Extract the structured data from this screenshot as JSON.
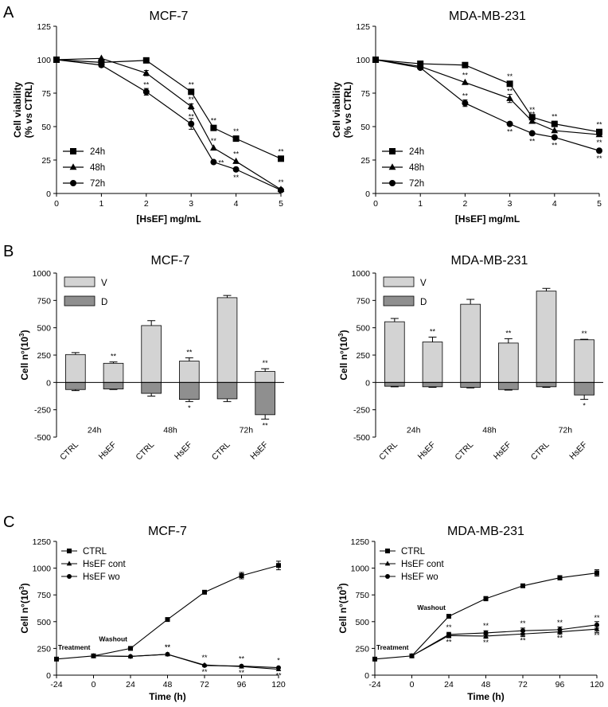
{
  "figure": {
    "panel_labels": [
      "A",
      "B",
      "C"
    ]
  },
  "chart_data": [
    {
      "type": "line",
      "title": "MCF-7",
      "xlabel": "[HsEF] mg/mL",
      "ylabel_lines": [
        "Cell viability",
        "(% vs CTRL)"
      ],
      "xlim": [
        0,
        5
      ],
      "ylim": [
        0,
        125
      ],
      "xticks": [
        0,
        1,
        2,
        3,
        4,
        5
      ],
      "yticks": [
        0,
        25,
        50,
        75,
        100,
        125
      ],
      "x": [
        0,
        1,
        2,
        3,
        3.5,
        4,
        5
      ],
      "series": [
        {
          "name": "24h",
          "marker": "square",
          "values": [
            100,
            98,
            99.5,
            76,
            49,
            41,
            26
          ],
          "errors": [
            0,
            0,
            0,
            0,
            0,
            0,
            0
          ],
          "sig": [
            [
              "",
              ""
            ],
            [
              "",
              ""
            ],
            [
              "",
              ""
            ],
            [
              "above",
              "**"
            ],
            [
              "above",
              "**"
            ],
            [
              "above",
              "**"
            ],
            [
              "above",
              "**"
            ]
          ]
        },
        {
          "name": "48h",
          "marker": "triangle",
          "values": [
            100,
            101,
            90,
            65,
            34,
            24,
            3
          ],
          "errors": [
            0,
            0,
            2,
            2,
            0,
            0,
            0
          ],
          "sig": [
            [
              "",
              ""
            ],
            [
              "",
              ""
            ],
            [
              "",
              ""
            ],
            [
              "above",
              "**"
            ],
            [
              "above",
              "**"
            ],
            [
              "above",
              "**"
            ],
            [
              "above",
              "**"
            ]
          ]
        },
        {
          "name": "72h",
          "marker": "circle",
          "values": [
            100,
            96,
            76,
            52,
            23.5,
            18,
            2.5
          ],
          "errors": [
            0,
            1.5,
            2.5,
            4,
            0,
            0,
            0
          ],
          "sig": [
            [
              "",
              ""
            ],
            [
              "",
              ""
            ],
            [
              "above",
              "**"
            ],
            [
              "above",
              "**"
            ],
            [
              "right",
              "**"
            ],
            [
              "below",
              "**"
            ],
            [
              "",
              ""
            ]
          ]
        }
      ]
    },
    {
      "type": "line",
      "title": "MDA-MB-231",
      "xlabel": "[HsEF] mg/mL",
      "ylabel_lines": [
        "Cell viability",
        "(% vs CTRL)"
      ],
      "xlim": [
        0,
        5
      ],
      "ylim": [
        0,
        125
      ],
      "xticks": [
        0,
        1,
        2,
        3,
        4,
        5
      ],
      "yticks": [
        0,
        25,
        50,
        75,
        100,
        125
      ],
      "x": [
        0,
        1,
        2,
        3,
        3.5,
        4,
        5
      ],
      "series": [
        {
          "name": "24h",
          "marker": "square",
          "values": [
            100,
            97,
            96,
            82,
            57,
            52,
            46
          ],
          "errors": [
            0,
            0,
            0,
            0,
            0,
            0,
            0
          ],
          "sig": [
            [
              "",
              ""
            ],
            [
              "",
              ""
            ],
            [
              "",
              ""
            ],
            [
              "above",
              "**"
            ],
            [
              "above",
              "**"
            ],
            [
              "above",
              "**"
            ],
            [
              "above",
              "**"
            ]
          ]
        },
        {
          "name": "48h",
          "marker": "triangle",
          "values": [
            100,
            95,
            83,
            71,
            54,
            47,
            44
          ],
          "errors": [
            0,
            0,
            0,
            3,
            0,
            0,
            0
          ],
          "sig": [
            [
              "",
              ""
            ],
            [
              "",
              ""
            ],
            [
              "above",
              "**"
            ],
            [
              "above",
              "**"
            ],
            [
              "above",
              "**"
            ],
            [
              "above",
              "**"
            ],
            [
              "below",
              "**"
            ]
          ]
        },
        {
          "name": "72h",
          "marker": "circle",
          "values": [
            100,
            94,
            67.5,
            52,
            45,
            42,
            32
          ],
          "errors": [
            0,
            0,
            2.5,
            0,
            0,
            0,
            0
          ],
          "sig": [
            [
              "",
              ""
            ],
            [
              "",
              ""
            ],
            [
              "above",
              "**"
            ],
            [
              "below",
              "**"
            ],
            [
              "below",
              "**"
            ],
            [
              "below",
              "**"
            ],
            [
              "below",
              "**"
            ]
          ]
        }
      ]
    },
    {
      "type": "bar",
      "title": "MCF-7",
      "ylabel": "Cell n°(10",
      "ylabel_sup": "3",
      "ylim": [
        -500,
        1000
      ],
      "yticks": [
        -500,
        -250,
        0,
        250,
        500,
        750,
        1000
      ],
      "groups": [
        "24h",
        "48h",
        "72h"
      ],
      "bar_labels": [
        "CTRL",
        "HsEF",
        "CTRL",
        "HsEF",
        "CTRL",
        "HsEF"
      ],
      "legend": [
        "V",
        "D"
      ],
      "series": [
        {
          "name": "V",
          "color": "#d3d3d3",
          "values": [
            255,
            175,
            520,
            195,
            775,
            100
          ],
          "errors": [
            18,
            12,
            45,
            30,
            20,
            25
          ],
          "sig": [
            "",
            "**",
            "",
            "**",
            "",
            "**"
          ]
        },
        {
          "name": "D",
          "color": "#8f8f8f",
          "values": [
            -65,
            -60,
            -100,
            -155,
            -150,
            -295
          ],
          "errors": [
            10,
            5,
            25,
            20,
            25,
            40
          ],
          "sig": [
            "",
            "",
            "",
            "*",
            "",
            "**"
          ]
        }
      ]
    },
    {
      "type": "bar",
      "title": "MDA-MB-231",
      "ylabel": "Cell n°(10",
      "ylabel_sup": "3",
      "ylim": [
        -500,
        1000
      ],
      "yticks": [
        -500,
        -250,
        0,
        250,
        500,
        750,
        1000
      ],
      "groups": [
        "24h",
        "48h",
        "72h"
      ],
      "bar_labels": [
        "CTRL",
        "HsEF",
        "CTRL",
        "HsEF",
        "CTRL",
        "HsEF"
      ],
      "legend": [
        "V",
        "D"
      ],
      "series": [
        {
          "name": "V",
          "color": "#d3d3d3",
          "values": [
            555,
            370,
            715,
            360,
            835,
            390
          ],
          "errors": [
            30,
            45,
            45,
            40,
            25,
            5
          ],
          "sig": [
            "",
            "**",
            "",
            "**",
            "",
            "**"
          ]
        },
        {
          "name": "D",
          "color": "#8f8f8f",
          "values": [
            -35,
            -40,
            -45,
            -65,
            -40,
            -115
          ],
          "errors": [
            5,
            5,
            5,
            5,
            5,
            40
          ],
          "sig": [
            "",
            "",
            "",
            "",
            "",
            "*"
          ]
        }
      ]
    },
    {
      "type": "line",
      "title": "MCF-7",
      "xlabel": "Time (h)",
      "ylabel": "Cell n°(10",
      "ylabel_sup": "3",
      "xlim": [
        -24,
        120
      ],
      "ylim": [
        0,
        1250
      ],
      "xticks": [
        -24,
        0,
        24,
        48,
        72,
        96,
        120
      ],
      "yticks": [
        0,
        250,
        500,
        750,
        1000,
        1250
      ],
      "annotations": [
        {
          "text": "Treatment",
          "x": 0,
          "y": 180
        },
        {
          "text": "Washout",
          "x": 24,
          "y": 255
        }
      ],
      "series": [
        {
          "name": "CTRL",
          "marker": "square",
          "x": [
            -24,
            0,
            24,
            48,
            72,
            96,
            120
          ],
          "values": [
            150,
            180,
            250,
            520,
            775,
            930,
            1025
          ],
          "errors": [
            0,
            0,
            0,
            0,
            0,
            30,
            40
          ],
          "sig": [
            "",
            "",
            "",
            "",
            "",
            "",
            ""
          ]
        },
        {
          "name": "HsEF cont",
          "marker": "triangle",
          "x": [
            0,
            24,
            48,
            72,
            96,
            120
          ],
          "values": [
            180,
            175,
            195,
            95,
            80,
            55
          ],
          "errors": [
            0,
            0,
            0,
            0,
            0,
            0
          ],
          "sig": [
            "",
            "**",
            "**",
            "**",
            "**",
            "**"
          ]
        },
        {
          "name": "HsEF wo",
          "marker": "circle",
          "x": [
            0,
            24,
            48,
            72,
            96,
            120
          ],
          "values": [
            180,
            175,
            195,
            90,
            85,
            70
          ],
          "errors": [
            0,
            0,
            0,
            0,
            0,
            0
          ],
          "sig": [
            "",
            "**",
            "**",
            "**",
            "**",
            "*"
          ]
        }
      ]
    },
    {
      "type": "line",
      "title": "MDA-MB-231",
      "xlabel": "Time (h)",
      "ylabel": "Cell n°(10",
      "ylabel_sup": "3",
      "xlim": [
        -24,
        120
      ],
      "ylim": [
        0,
        1250
      ],
      "xticks": [
        -24,
        0,
        24,
        48,
        72,
        96,
        120
      ],
      "yticks": [
        0,
        250,
        500,
        750,
        1000,
        1250
      ],
      "annotations": [
        {
          "text": "Treatment",
          "x": 0,
          "y": 180
        },
        {
          "text": "Washout",
          "x": 24,
          "y": 550
        }
      ],
      "series": [
        {
          "name": "CTRL",
          "marker": "square",
          "x": [
            -24,
            0,
            24,
            48,
            72,
            96,
            120
          ],
          "values": [
            150,
            180,
            550,
            715,
            835,
            910,
            955
          ],
          "errors": [
            0,
            0,
            0,
            20,
            0,
            20,
            30
          ],
          "sig": [
            "",
            "",
            "",
            "",
            "",
            "",
            ""
          ]
        },
        {
          "name": "HsEF cont",
          "marker": "triangle",
          "x": [
            0,
            24,
            48,
            72,
            96,
            120
          ],
          "values": [
            180,
            370,
            365,
            385,
            405,
            430
          ],
          "errors": [
            0,
            20,
            20,
            25,
            25,
            30
          ],
          "sig": [
            "",
            "**",
            "**",
            "**",
            "**",
            "**"
          ]
        },
        {
          "name": "HsEF wo",
          "marker": "circle",
          "x": [
            0,
            24,
            48,
            72,
            96,
            120
          ],
          "values": [
            180,
            380,
            395,
            415,
            425,
            470
          ],
          "errors": [
            0,
            20,
            20,
            25,
            25,
            30
          ],
          "sig": [
            "",
            "**",
            "**",
            "**",
            "**",
            "**"
          ]
        }
      ]
    }
  ]
}
